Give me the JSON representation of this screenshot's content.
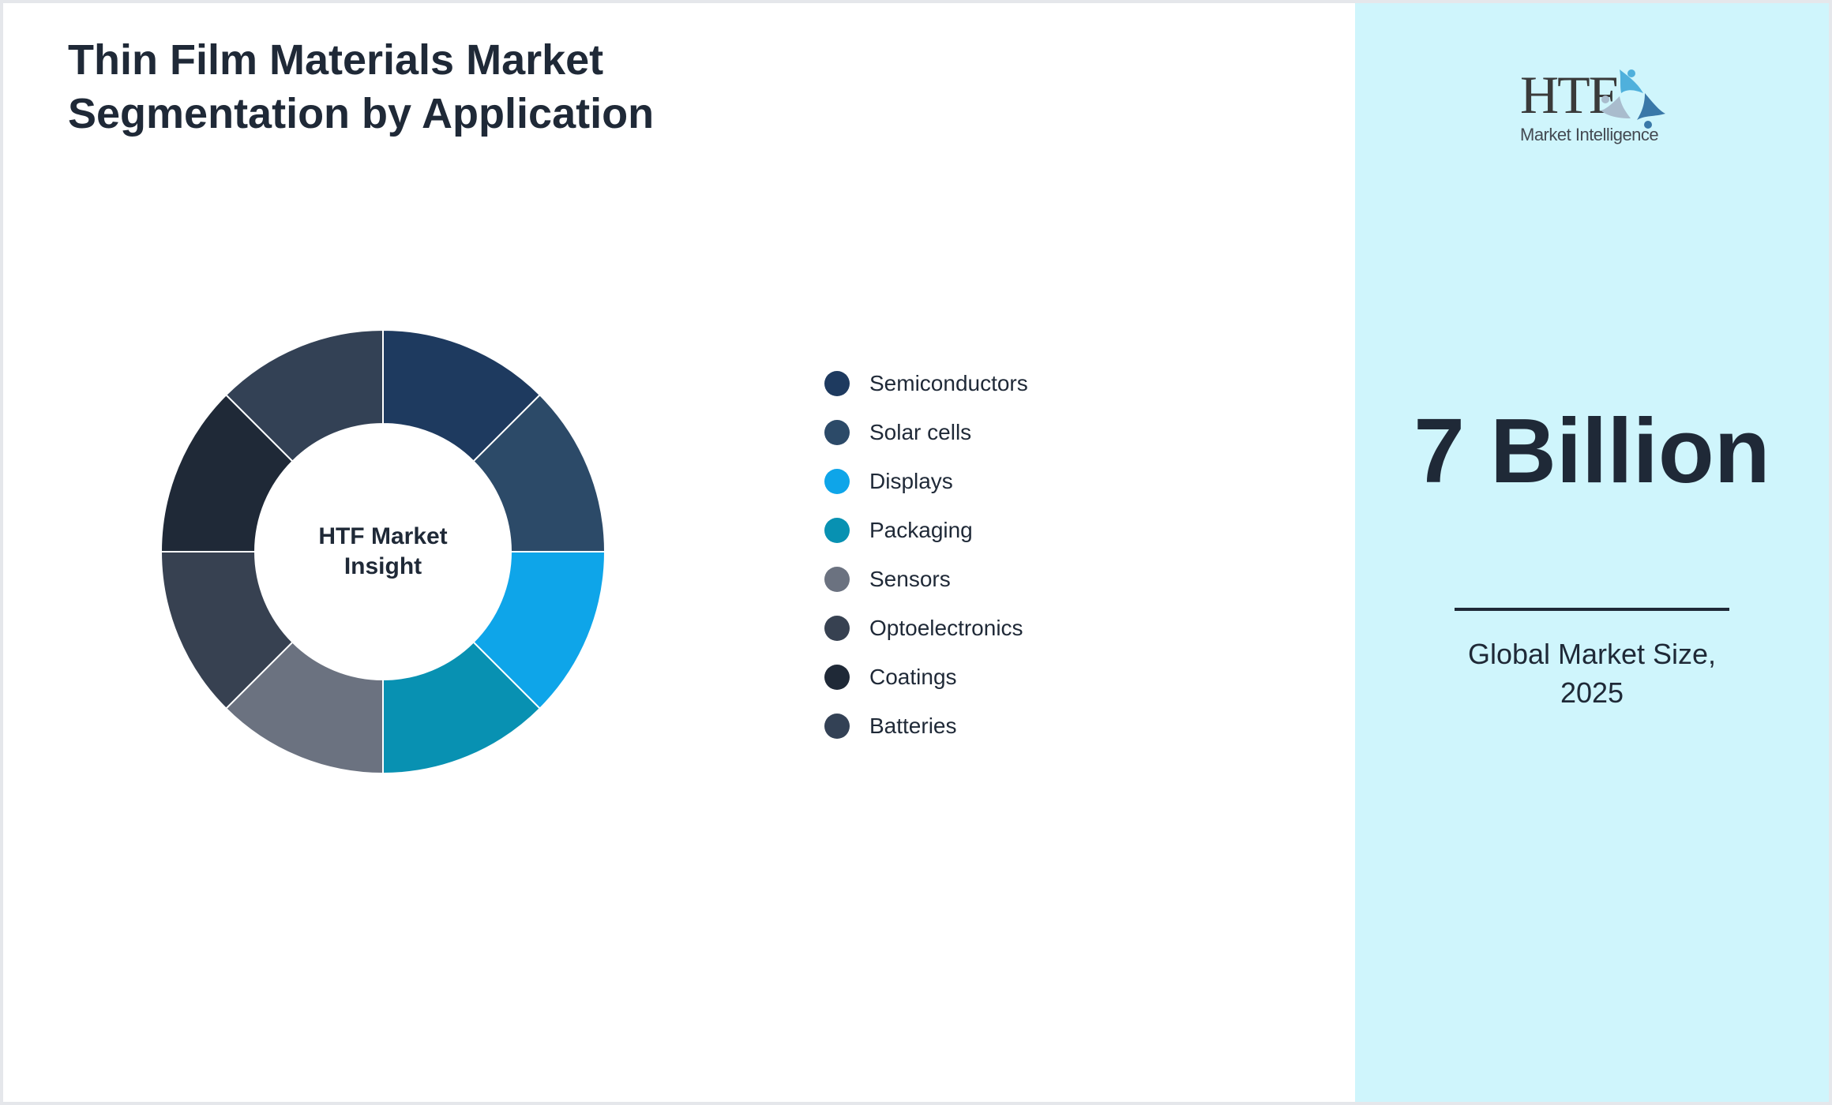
{
  "title": {
    "line1": "Thin Film Materials Market",
    "line2": "Segmentation by Application"
  },
  "donut": {
    "center_line1": "HTF Market",
    "center_line2": "Insight"
  },
  "legend": [
    {
      "label": "Semiconductors",
      "color": "#1e3a5f"
    },
    {
      "label": "Solar cells",
      "color": "#2c4a68"
    },
    {
      "label": "Displays",
      "color": "#0ea5e9"
    },
    {
      "label": "Packaging",
      "color": "#0891b2"
    },
    {
      "label": "Sensors",
      "color": "#6b7280"
    },
    {
      "label": "Optoelectronics",
      "color": "#374151"
    },
    {
      "label": "Coatings",
      "color": "#1f2937"
    },
    {
      "label": "Batteries",
      "color": "#334155"
    }
  ],
  "side_panel": {
    "logo_text": "HTF",
    "logo_tagline": "Market Intelligence",
    "value": "7 Billion",
    "caption_line1": "Global Market Size,",
    "caption_line2": "2025"
  },
  "chart_data": {
    "type": "pie",
    "subtype": "donut",
    "title": "Thin Film Materials Market Segmentation by Application",
    "center_label": "HTF Market Insight",
    "categories": [
      "Semiconductors",
      "Solar cells",
      "Displays",
      "Packaging",
      "Sensors",
      "Optoelectronics",
      "Coatings",
      "Batteries"
    ],
    "values": [
      12.5,
      12.5,
      12.5,
      12.5,
      12.5,
      12.5,
      12.5,
      12.5
    ],
    "colors": [
      "#1e3a5f",
      "#2c4a68",
      "#0ea5e9",
      "#0891b2",
      "#6b7280",
      "#374151",
      "#1f2937",
      "#334155"
    ],
    "start_angle": "12 o'clock, clockwise",
    "legend_position": "right",
    "annotation": {
      "value": "7 Billion",
      "label": "Global Market Size, 2025"
    }
  }
}
